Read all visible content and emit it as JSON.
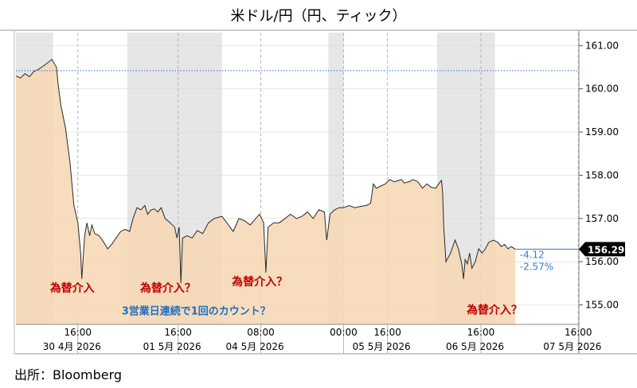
{
  "title": "米ドル/円（円、ティック）",
  "source": "出所：Bloomberg",
  "chart_data": {
    "type": "area",
    "title": "米ドル/円（円、ティック）",
    "ylim": [
      154.55,
      161.3
    ],
    "yticks": [
      155.0,
      156.0,
      157.0,
      158.0,
      159.0,
      160.0,
      161.0
    ],
    "ytick_labels": [
      "155.00",
      "156.00",
      "157.00",
      "158.00",
      "159.00",
      "160.00",
      "161.00"
    ],
    "xlim": [
      0,
      100
    ],
    "x_tick_labels": [
      {
        "x": 11.0,
        "time": "16:00",
        "date": "30 4月  2026"
      },
      {
        "x": 28.8,
        "time": "16:00",
        "date": "01 5月  2026"
      },
      {
        "x": 43.5,
        "time": "08:00",
        "date": "04 5月  2026"
      },
      {
        "x": 58.2,
        "time": "00:00",
        "date": ""
      },
      {
        "x": 66.0,
        "time": "16:00",
        "date": "05 5月  2026"
      },
      {
        "x": 82.6,
        "time": "16:00",
        "date": "06 5月  2026"
      },
      {
        "x": 99.9,
        "time": "16:00",
        "date": "07 5月  2026"
      }
    ],
    "session_bands": [
      [
        0,
        6.6
      ],
      [
        19.8,
        36.6
      ],
      [
        55.5,
        58.2
      ],
      [
        74.8,
        85.1
      ]
    ],
    "reference_line": 160.42,
    "last_value": "156.29",
    "change_text": [
      "-4.12",
      "-2.57%"
    ],
    "annotations": [
      {
        "text": "為替介入",
        "x": 10.0,
        "y": 155.3,
        "color": "red"
      },
      {
        "text": "為替介入？",
        "x": 27.0,
        "y": 155.3,
        "color": "red"
      },
      {
        "text": "為替介入？",
        "x": 43.3,
        "y": 155.45,
        "color": "red"
      },
      {
        "text": "3営業日連続で1回のカウント？",
        "x": 32.0,
        "y": 154.78,
        "color": "blue"
      },
      {
        "text": "為替介入？",
        "x": 85.0,
        "y": 154.8,
        "color": "red"
      }
    ],
    "series": [
      {
        "x": [
          0,
          0.8,
          1.6,
          2.4,
          3.2,
          4.0,
          4.8,
          5.6,
          6.4,
          7.2,
          7.5,
          8.0,
          8.8,
          9.6,
          10.3,
          11.0,
          11.5,
          11.7,
          12.2,
          12.6,
          13.1,
          13.5,
          14.0,
          14.8,
          15.6,
          16.3,
          17.0,
          17.8,
          18.6,
          19.4,
          20.2,
          20.8,
          21.5,
          22.2,
          22.9,
          23.4,
          24.0,
          24.6,
          25.2,
          25.8,
          26.5,
          27.4,
          28.2,
          28.6,
          29.0,
          29.3,
          29.6,
          30.4,
          31.3,
          32.2,
          33.2,
          34.2,
          35.2,
          36.6,
          38.6,
          39.6,
          40.6,
          41.6,
          42.6,
          43.3,
          44.0,
          44.4,
          44.8,
          45.8,
          46.8,
          47.8,
          48.8,
          49.8,
          50.8,
          51.8,
          52.8,
          53.8,
          54.8,
          55.2,
          55.8,
          56.6,
          57.4,
          58.2,
          59.2,
          60.2,
          61.2,
          62.2,
          63.0,
          63.5,
          64.0,
          64.8,
          65.6,
          66.4,
          67.2,
          68.0,
          68.5,
          69.0,
          69.8,
          70.6,
          71.4,
          72.2,
          73.0,
          73.8,
          74.6,
          75.2,
          75.6,
          75.8,
          76.0,
          76.4,
          77.2,
          78.0,
          78.6,
          79.2,
          79.5,
          79.8,
          80.2,
          80.6,
          81.0,
          81.6,
          82.2,
          82.8,
          83.4,
          84.0,
          84.8,
          85.6,
          86.2,
          86.8,
          87.4,
          88.0,
          88.7
        ],
        "y": [
          160.3,
          160.25,
          160.35,
          160.28,
          160.4,
          160.45,
          160.52,
          160.6,
          160.68,
          160.5,
          160.1,
          159.6,
          159.1,
          158.3,
          157.3,
          156.9,
          156.2,
          155.6,
          156.6,
          156.9,
          156.6,
          156.85,
          156.65,
          156.6,
          156.45,
          156.3,
          156.4,
          156.55,
          156.7,
          156.75,
          156.7,
          157.0,
          157.25,
          157.2,
          157.3,
          157.1,
          157.2,
          157.22,
          157.15,
          157.25,
          157.0,
          156.9,
          156.8,
          156.55,
          156.8,
          155.5,
          156.55,
          156.6,
          156.55,
          156.72,
          156.65,
          156.9,
          157.0,
          157.05,
          156.7,
          157.0,
          156.95,
          156.85,
          157.0,
          157.1,
          156.9,
          155.75,
          156.8,
          156.9,
          156.9,
          157.0,
          157.1,
          157.0,
          157.05,
          157.15,
          157.0,
          157.2,
          157.15,
          156.5,
          157.1,
          157.2,
          157.25,
          157.25,
          157.3,
          157.25,
          157.28,
          157.3,
          157.35,
          157.8,
          157.7,
          157.75,
          157.8,
          157.9,
          157.85,
          157.88,
          157.9,
          157.82,
          157.85,
          157.9,
          157.85,
          157.7,
          157.8,
          157.72,
          157.7,
          157.82,
          157.88,
          157.6,
          156.8,
          156.0,
          156.2,
          156.5,
          156.3,
          155.95,
          155.6,
          156.05,
          155.95,
          156.2,
          155.85,
          156.0,
          156.3,
          156.2,
          156.3,
          156.45,
          156.5,
          156.45,
          156.35,
          156.4,
          156.3,
          156.35,
          156.29
        ]
      }
    ]
  }
}
